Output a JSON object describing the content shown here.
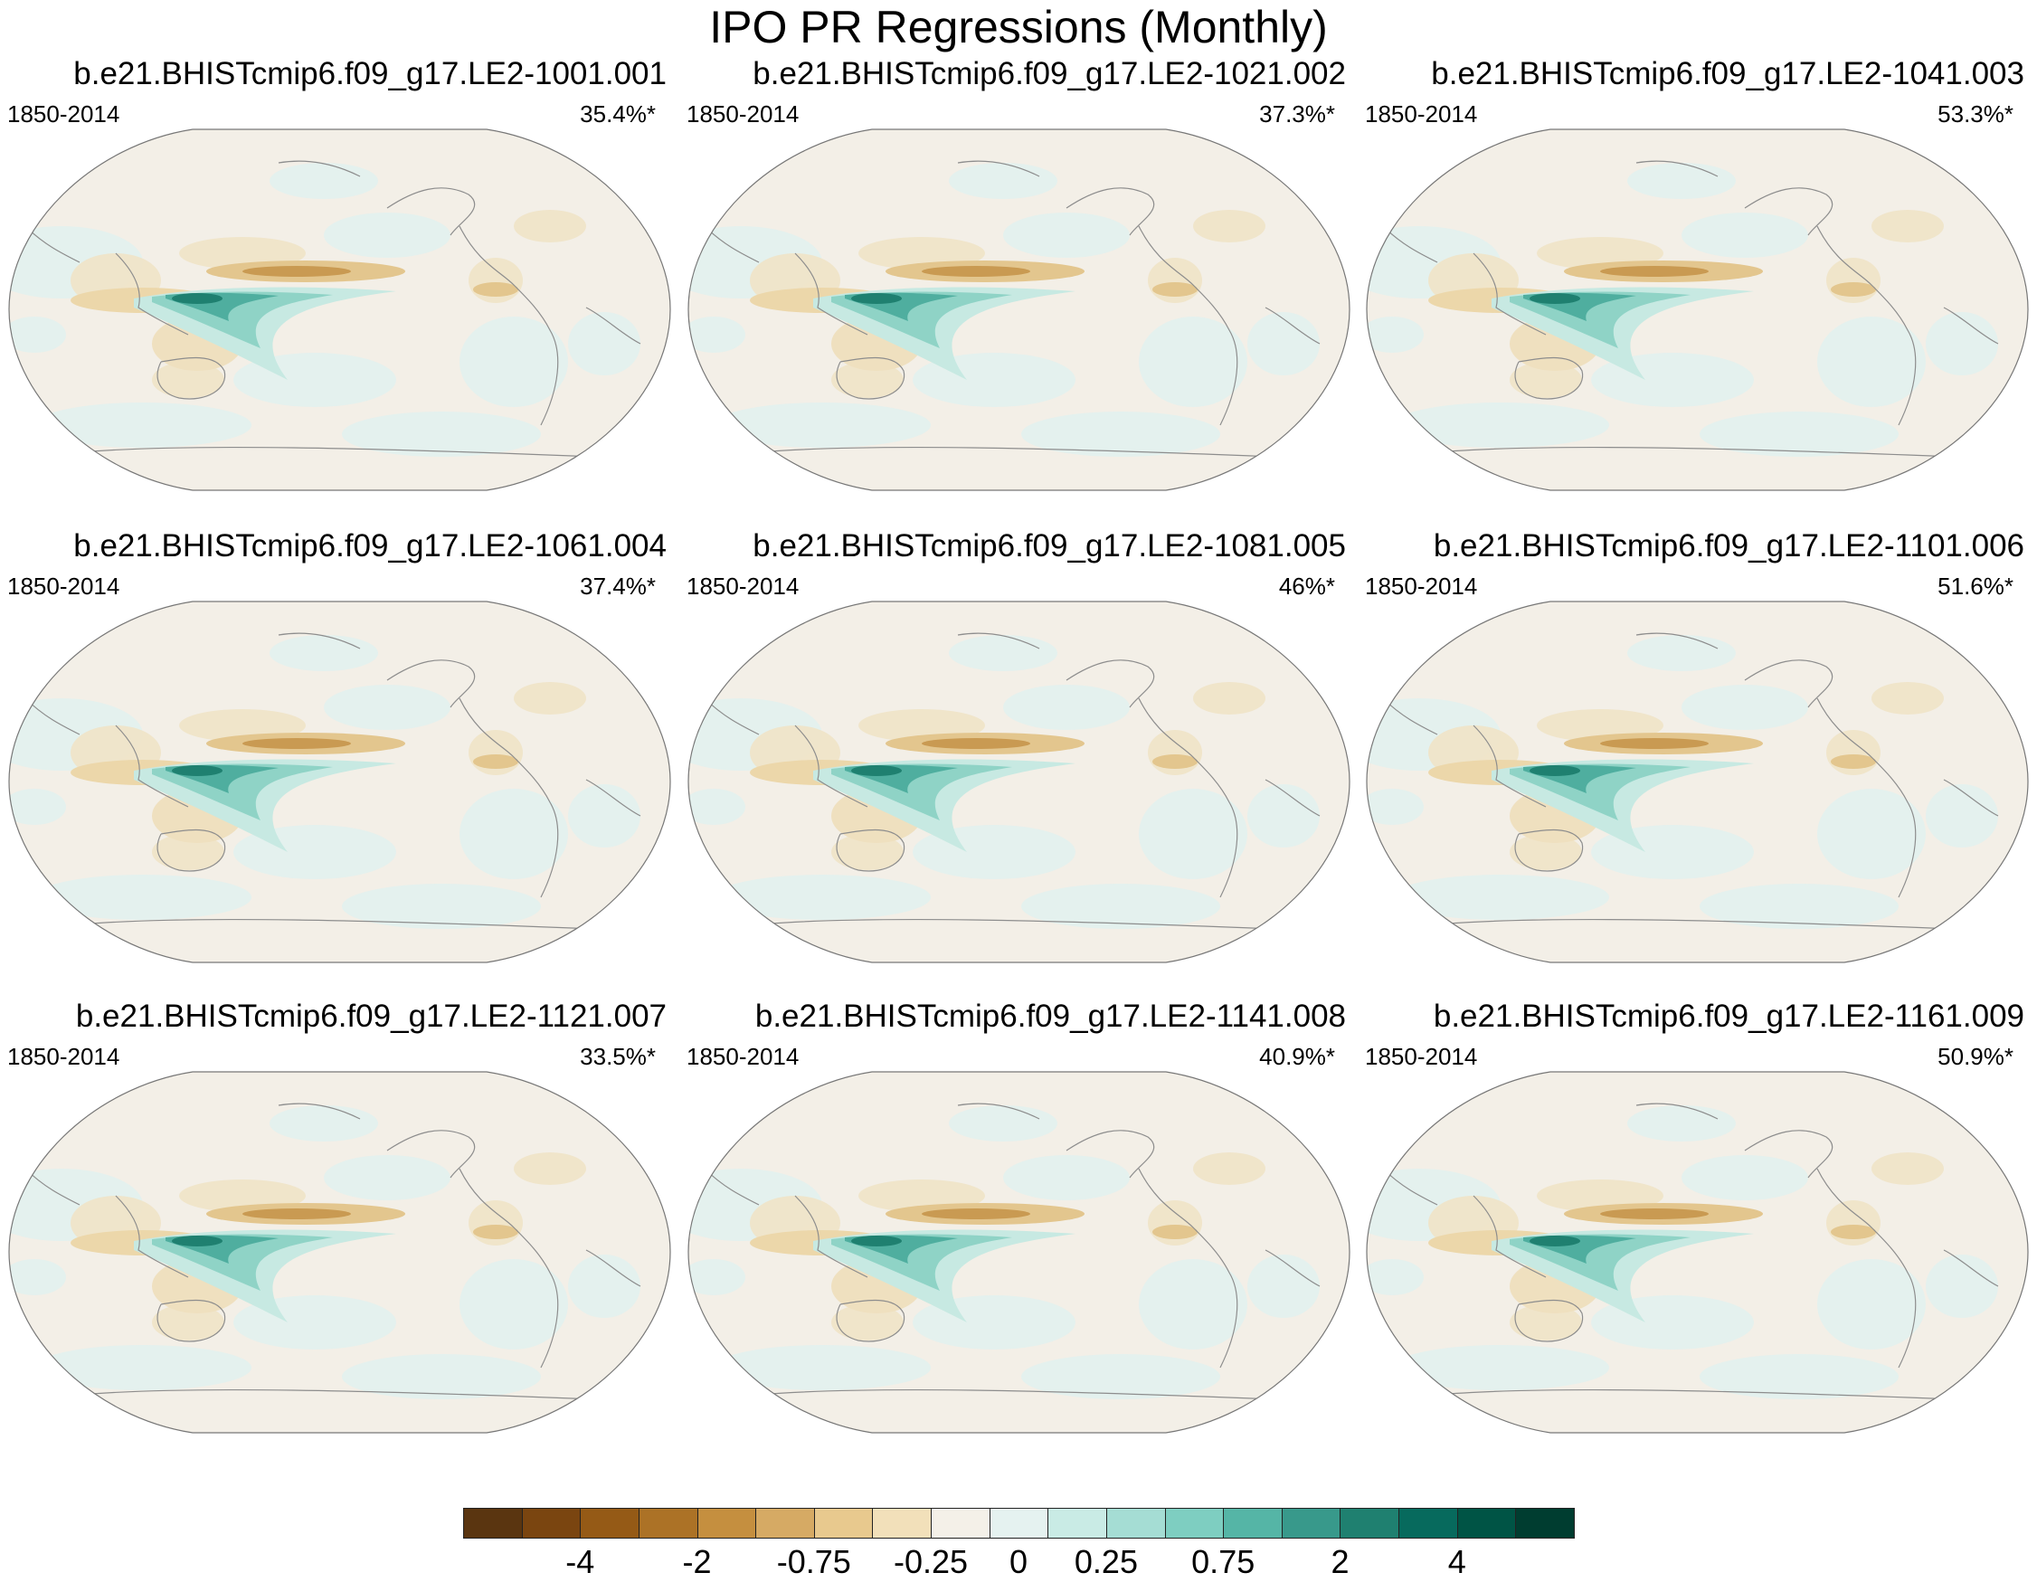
{
  "title": "IPO PR Regressions (Monthly)",
  "panels": [
    {
      "name": "b.e21.BHISTcmip6.f09_g17.LE2-1001.001",
      "period": "1850-2014",
      "variance": "35.4%*"
    },
    {
      "name": "b.e21.BHISTcmip6.f09_g17.LE2-1021.002",
      "period": "1850-2014",
      "variance": "37.3%*"
    },
    {
      "name": "b.e21.BHISTcmip6.f09_g17.LE2-1041.003",
      "period": "1850-2014",
      "variance": "53.3%*"
    },
    {
      "name": "b.e21.BHISTcmip6.f09_g17.LE2-1061.004",
      "period": "1850-2014",
      "variance": "37.4%*"
    },
    {
      "name": "b.e21.BHISTcmip6.f09_g17.LE2-1081.005",
      "period": "1850-2014",
      "variance": "46%*"
    },
    {
      "name": "b.e21.BHISTcmip6.f09_g17.LE2-1101.006",
      "period": "1850-2014",
      "variance": "51.6%*"
    },
    {
      "name": "b.e21.BHISTcmip6.f09_g17.LE2-1121.007",
      "period": "1850-2014",
      "variance": "33.5%*"
    },
    {
      "name": "b.e21.BHISTcmip6.f09_g17.LE2-1141.008",
      "period": "1850-2014",
      "variance": "40.9%*"
    },
    {
      "name": "b.e21.BHISTcmip6.f09_g17.LE2-1161.009",
      "period": "1850-2014",
      "variance": "50.9%*"
    }
  ],
  "colorbar": {
    "colors": [
      "#5a3510",
      "#7a4510",
      "#955a16",
      "#ac7226",
      "#c58f3f",
      "#d6aa64",
      "#e8c98e",
      "#f2e0ba",
      "#f4f0e8",
      "#e5f2f0",
      "#c9ebe5",
      "#a5ddd4",
      "#7ecec1",
      "#55b5a6",
      "#38998b",
      "#1f8070",
      "#076a5d",
      "#005445",
      "#003d30"
    ],
    "labels": [
      "-4",
      "-2",
      "-0.75",
      "-0.25",
      "0",
      "0.25",
      "0.75",
      "2",
      "4"
    ]
  }
}
